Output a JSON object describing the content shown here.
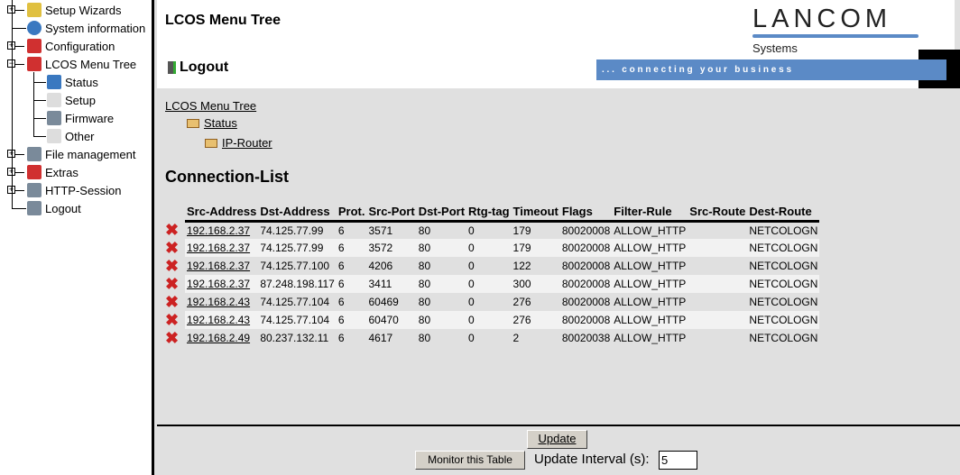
{
  "sidebar": {
    "items": [
      {
        "label": "Setup Wizards",
        "icon": "wand-icon",
        "expander": "+"
      },
      {
        "label": "System information",
        "icon": "info-icon",
        "expander": ""
      },
      {
        "label": "Configuration",
        "icon": "config-tool-icon",
        "expander": "+"
      },
      {
        "label": "LCOS Menu Tree",
        "icon": "config-tool-icon",
        "expander": "-"
      },
      {
        "label": "Status",
        "icon": "table-info-icon",
        "child": true
      },
      {
        "label": "Setup",
        "icon": "table-edit-icon",
        "child": true
      },
      {
        "label": "Firmware",
        "icon": "firmware-icon",
        "child": true
      },
      {
        "label": "Other",
        "icon": "table-edit-icon",
        "child": true
      },
      {
        "label": "File management",
        "icon": "file-management-icon",
        "expander": "+"
      },
      {
        "label": "Extras",
        "icon": "config-tool-icon",
        "expander": "+"
      },
      {
        "label": "HTTP-Session",
        "icon": "monitor-icon",
        "expander": "+"
      },
      {
        "label": "Logout",
        "icon": "logout-door-icon",
        "expander": ""
      }
    ]
  },
  "header": {
    "title": "LCOS Menu Tree",
    "logout": "Logout",
    "logo": "LANCOM",
    "logo_sub": "Systems",
    "slogan": ". . .   c o n n e c t i n g   y o u r   b u s i n e s s"
  },
  "breadcrumb": [
    "LCOS Menu Tree",
    "Status",
    "IP-Router"
  ],
  "page_title": "Connection-List",
  "table": {
    "columns": [
      "Src-Address",
      "Dst-Address",
      "Prot.",
      "Src-Port",
      "Dst-Port",
      "Rtg-tag",
      "Timeout",
      "Flags",
      "Filter-Rule",
      "Src-Route",
      "Dest-Route"
    ],
    "rows": [
      [
        "192.168.2.37",
        "74.125.77.99",
        "6",
        "3571",
        "80",
        "0",
        "179",
        "80020008",
        "ALLOW_HTTP",
        "",
        "NETCOLOGN"
      ],
      [
        "192.168.2.37",
        "74.125.77.99",
        "6",
        "3572",
        "80",
        "0",
        "179",
        "80020008",
        "ALLOW_HTTP",
        "",
        "NETCOLOGN"
      ],
      [
        "192.168.2.37",
        "74.125.77.100",
        "6",
        "4206",
        "80",
        "0",
        "122",
        "80020008",
        "ALLOW_HTTP",
        "",
        "NETCOLOGN"
      ],
      [
        "192.168.2.37",
        "87.248.198.117",
        "6",
        "3411",
        "80",
        "0",
        "300",
        "80020008",
        "ALLOW_HTTP",
        "",
        "NETCOLOGN"
      ],
      [
        "192.168.2.43",
        "74.125.77.104",
        "6",
        "60469",
        "80",
        "0",
        "276",
        "80020008",
        "ALLOW_HTTP",
        "",
        "NETCOLOGN"
      ],
      [
        "192.168.2.43",
        "74.125.77.104",
        "6",
        "60470",
        "80",
        "0",
        "276",
        "80020008",
        "ALLOW_HTTP",
        "",
        "NETCOLOGN"
      ],
      [
        "192.168.2.49",
        "80.237.132.11",
        "6",
        "4617",
        "80",
        "0",
        "2",
        "80020038",
        "ALLOW_HTTP",
        "",
        "NETCOLOGN"
      ]
    ]
  },
  "footer": {
    "update": "Update",
    "monitor": "Monitor this Table",
    "interval_label": "Update Interval (s):",
    "interval_value": "5"
  },
  "colors": {
    "brand_blue": "#5b8ac6",
    "content_bg": "#e0e0e0",
    "delete_red": "#cc2222"
  }
}
